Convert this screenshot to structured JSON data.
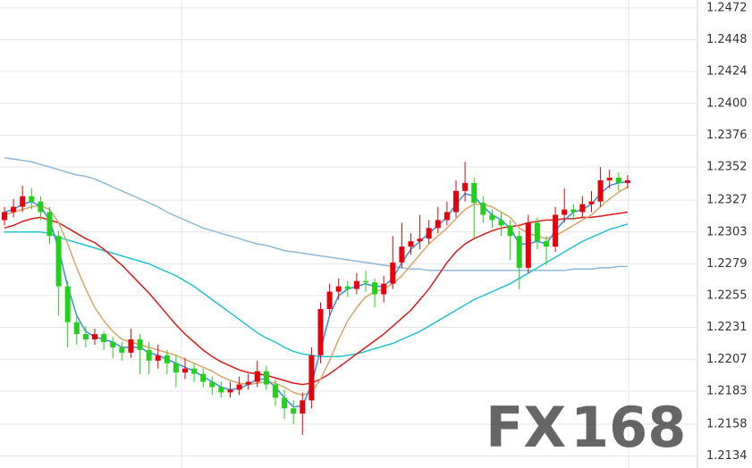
{
  "chart_data": {
    "type": "candlestick",
    "ylim": [
      1.2125,
      1.2478
    ],
    "yticks": [
      1.2472,
      1.2448,
      1.2424,
      {
        "value": 1.24,
        "label": "1.2400"
      },
      1.2376,
      1.2352,
      1.2327,
      1.2303,
      1.2279,
      1.2255,
      1.2231,
      1.2207,
      1.2183,
      1.2158,
      1.2134
    ],
    "grid": true,
    "up_color": "#e8000b",
    "down_color": "#22d11a",
    "open": [
      1.2312,
      1.2318,
      1.2322,
      1.233,
      1.2326,
      1.2318,
      1.23,
      1.2262,
      1.2235,
      1.2226,
      1.2222,
      1.2226,
      1.222,
      1.2216,
      1.2212,
      1.2222,
      1.2214,
      1.2206,
      1.221,
      1.2204,
      1.2197,
      1.22,
      1.2196,
      1.219,
      1.2186,
      1.2182,
      1.2184,
      1.2188,
      1.219,
      1.2198,
      1.2188,
      1.2178,
      1.217,
      1.2166,
      1.2176,
      1.221,
      1.2245,
      1.2258,
      1.2262,
      1.226,
      1.2266,
      1.2265,
      1.2256,
      1.2264,
      1.228,
      1.2292,
      1.2296,
      1.2298,
      1.2306,
      1.2312,
      1.2318,
      1.2334,
      1.234,
      1.2325,
      1.2316,
      1.2312,
      1.2308,
      1.23,
      1.2276,
      1.231,
      1.2296,
      1.2292,
      1.2316,
      1.232,
      1.2318,
      1.2324,
      1.2326,
      1.2342,
      1.2344,
      1.234
    ],
    "high": [
      1.2322,
      1.2328,
      1.2338,
      1.2336,
      1.233,
      1.2322,
      1.2304,
      1.2266,
      1.224,
      1.2232,
      1.223,
      1.2228,
      1.2224,
      1.222,
      1.223,
      1.2226,
      1.222,
      1.2218,
      1.2214,
      1.221,
      1.2208,
      1.2204,
      1.22,
      1.2194,
      1.219,
      1.219,
      1.2194,
      1.2196,
      1.2206,
      1.2202,
      1.2192,
      1.2184,
      1.2176,
      1.2182,
      1.2216,
      1.225,
      1.2264,
      1.2268,
      1.2266,
      1.2272,
      1.2274,
      1.2268,
      1.227,
      1.23,
      1.231,
      1.2302,
      1.2316,
      1.2312,
      1.2322,
      1.2326,
      1.2342,
      1.2356,
      1.2344,
      1.233,
      1.232,
      1.2318,
      1.2312,
      1.2304,
      1.2316,
      1.2314,
      1.23,
      1.2322,
      1.2336,
      1.2324,
      1.233,
      1.2334,
      1.2352,
      1.235,
      1.2348,
      1.2346
    ],
    "low": [
      1.2308,
      1.2314,
      1.2318,
      1.232,
      1.2312,
      1.2294,
      1.224,
      1.2216,
      1.2218,
      1.2216,
      1.2218,
      1.2214,
      1.2208,
      1.2206,
      1.2208,
      1.2196,
      1.2196,
      1.22,
      1.2196,
      1.2186,
      1.2192,
      1.219,
      1.2186,
      1.218,
      1.2178,
      1.2178,
      1.218,
      1.2184,
      1.2186,
      1.2184,
      1.2172,
      1.2162,
      1.2158,
      1.215,
      1.217,
      1.2204,
      1.224,
      1.2252,
      1.2254,
      1.2256,
      1.2258,
      1.2246,
      1.225,
      1.226,
      1.2276,
      1.2286,
      1.229,
      1.2294,
      1.2302,
      1.2308,
      1.2314,
      1.2326,
      1.2298,
      1.231,
      1.2306,
      1.23,
      1.2282,
      1.226,
      1.2272,
      1.229,
      1.2278,
      1.2288,
      1.231,
      1.2312,
      1.2314,
      1.2318,
      1.2322,
      1.2336,
      1.2334,
      1.2336
    ],
    "close": [
      1.2318,
      1.2322,
      1.233,
      1.2326,
      1.2318,
      1.23,
      1.2262,
      1.2235,
      1.2226,
      1.2222,
      1.2226,
      1.222,
      1.2216,
      1.2212,
      1.2222,
      1.2214,
      1.2206,
      1.221,
      1.2204,
      1.2197,
      1.22,
      1.2196,
      1.219,
      1.2186,
      1.2182,
      1.2184,
      1.2188,
      1.219,
      1.2198,
      1.2188,
      1.2178,
      1.217,
      1.2166,
      1.2176,
      1.221,
      1.2245,
      1.2258,
      1.2262,
      1.226,
      1.2266,
      1.2265,
      1.2256,
      1.2264,
      1.228,
      1.2292,
      1.2296,
      1.2298,
      1.2306,
      1.2312,
      1.2318,
      1.2334,
      1.234,
      1.2325,
      1.2316,
      1.2312,
      1.2308,
      1.23,
      1.2276,
      1.231,
      1.2296,
      1.2292,
      1.2316,
      1.232,
      1.2318,
      1.2324,
      1.2326,
      1.2342,
      1.2344,
      1.234,
      1.2342
    ],
    "lines": [
      {
        "color": "#8fb9d6",
        "values": [
          1.2359,
          1.2358,
          1.2357,
          1.2356,
          1.2354,
          1.2352,
          1.235,
          1.2348,
          1.2346,
          1.2345,
          1.2343,
          1.234,
          1.2337,
          1.2334,
          1.2331,
          1.2328,
          1.2325,
          1.2322,
          1.2318,
          1.2315,
          1.2312,
          1.2309,
          1.2306,
          1.2304,
          1.2302,
          1.23,
          1.2298,
          1.2296,
          1.2294,
          1.2293,
          1.2291,
          1.2289,
          1.2288,
          1.2287,
          1.2286,
          1.2285,
          1.2284,
          1.2283,
          1.2282,
          1.2281,
          1.228,
          1.2279,
          1.2278,
          1.2277,
          1.2276,
          1.2275,
          1.2275,
          1.2274,
          1.2274,
          1.2274,
          1.2274,
          1.2274,
          1.2274,
          1.2274,
          1.2274,
          1.2274,
          1.2274,
          1.2274,
          1.2274,
          1.2274,
          1.2274,
          1.2274,
          1.2274,
          1.2275,
          1.2275,
          1.2275,
          1.2276,
          1.2276,
          1.2277,
          1.2277
        ]
      },
      {
        "color": "#21c4d0",
        "values": [
          1.2303,
          1.2303,
          1.2303,
          1.2303,
          1.2303,
          1.2302,
          1.2299,
          1.2297,
          1.2295,
          1.2293,
          1.2291,
          1.2289,
          1.2287,
          1.2285,
          1.2283,
          1.2281,
          1.2279,
          1.2276,
          1.2273,
          1.227,
          1.2266,
          1.2262,
          1.2257,
          1.2252,
          1.2247,
          1.2242,
          1.2237,
          1.2232,
          1.2227,
          1.2223,
          1.222,
          1.2216,
          1.2213,
          1.2211,
          1.221,
          1.2209,
          1.2209,
          1.2209,
          1.221,
          1.2211,
          1.2213,
          1.2215,
          1.2217,
          1.2219,
          1.2222,
          1.2225,
          1.2228,
          1.2232,
          1.2236,
          1.224,
          1.2244,
          1.2248,
          1.2252,
          1.2255,
          1.2258,
          1.2261,
          1.2264,
          1.2268,
          1.2272,
          1.2276,
          1.228,
          1.2284,
          1.2288,
          1.2292,
          1.2296,
          1.2299,
          1.2302,
          1.2305,
          1.2307,
          1.2309
        ]
      },
      {
        "color": "#e0191b",
        "values": [
          1.2306,
          1.2308,
          1.2311,
          1.2313,
          1.2314,
          1.2312,
          1.231,
          1.2306,
          1.2302,
          1.2298,
          1.2295,
          1.229,
          1.2284,
          1.2278,
          1.2271,
          1.2264,
          1.2257,
          1.2249,
          1.2241,
          1.2233,
          1.2226,
          1.222,
          1.2214,
          1.2209,
          1.2205,
          1.2202,
          1.2199,
          1.2197,
          1.2196,
          1.2195,
          1.2193,
          1.2191,
          1.2189,
          1.2188,
          1.2189,
          1.2192,
          1.2196,
          1.2201,
          1.2206,
          1.2211,
          1.2216,
          1.2221,
          1.2226,
          1.2232,
          1.2238,
          1.2244,
          1.2252,
          1.226,
          1.227,
          1.228,
          1.2288,
          1.2294,
          1.2298,
          1.2301,
          1.2304,
          1.2306,
          1.2307,
          1.2308,
          1.231,
          1.2311,
          1.2312,
          1.2312,
          1.2313,
          1.2313,
          1.2314,
          1.2314,
          1.2315,
          1.2316,
          1.2317,
          1.2318
        ]
      },
      {
        "color": "#d9a56a",
        "values": [
          1.2316,
          1.2318,
          1.232,
          1.2322,
          1.2323,
          1.232,
          1.231,
          1.2294,
          1.2276,
          1.226,
          1.2246,
          1.2236,
          1.2228,
          1.2222,
          1.222,
          1.2218,
          1.2216,
          1.2214,
          1.2212,
          1.221,
          1.2207,
          1.2204,
          1.2201,
          1.2198,
          1.2194,
          1.2191,
          1.2189,
          1.2188,
          1.2189,
          1.219,
          1.2189,
          1.2186,
          1.2182,
          1.218,
          1.2182,
          1.2192,
          1.2206,
          1.2222,
          1.2236,
          1.2246,
          1.2254,
          1.2258,
          1.226,
          1.2264,
          1.227,
          1.2278,
          1.2286,
          1.2294,
          1.23,
          1.2306,
          1.2313,
          1.232,
          1.2324,
          1.2324,
          1.2322,
          1.2318,
          1.2314,
          1.2306,
          1.2302,
          1.23,
          1.2298,
          1.23,
          1.2304,
          1.2308,
          1.2312,
          1.2316,
          1.2322,
          1.2328,
          1.2333,
          1.2337
        ]
      },
      {
        "color": "#3b8ede",
        "values": [
          1.2318,
          1.232,
          1.2324,
          1.2326,
          1.2322,
          1.2312,
          1.229,
          1.2262,
          1.224,
          1.2228,
          1.2224,
          1.2222,
          1.222,
          1.2216,
          1.2216,
          1.2216,
          1.2212,
          1.221,
          1.2207,
          1.2204,
          1.2201,
          1.2198,
          1.2194,
          1.219,
          1.2186,
          1.2184,
          1.2185,
          1.2188,
          1.2192,
          1.2192,
          1.2186,
          1.2178,
          1.2171,
          1.2172,
          1.2188,
          1.2214,
          1.224,
          1.2255,
          1.226,
          1.2262,
          1.2264,
          1.2262,
          1.2262,
          1.2268,
          1.228,
          1.229,
          1.2296,
          1.2302,
          1.2308,
          1.2314,
          1.2324,
          1.2332,
          1.233,
          1.2322,
          1.2316,
          1.2312,
          1.2306,
          1.2294,
          1.2294,
          1.2296,
          1.2294,
          1.2304,
          1.2312,
          1.2318,
          1.232,
          1.2324,
          1.2332,
          1.2338,
          1.234,
          1.2341
        ]
      }
    ],
    "watermark": [
      "FX",
      "168"
    ]
  }
}
